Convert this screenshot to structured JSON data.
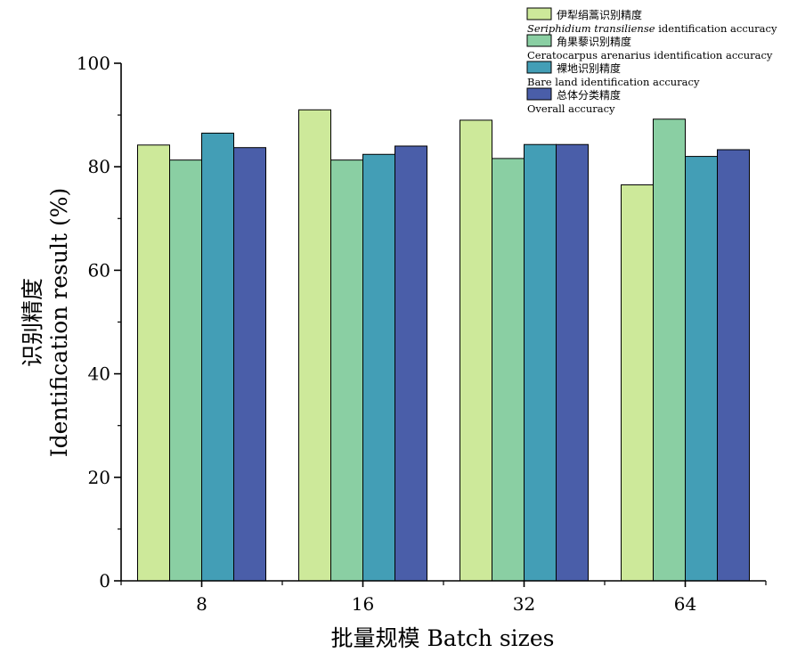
{
  "chart_data": {
    "type": "bar",
    "categories": [
      "8",
      "16",
      "32",
      "64"
    ],
    "series": [
      {
        "name_cn": "伊犁绢蒿识别精度",
        "name_italic": "Seriphidium transiliense",
        "name_en": " identification accuracy",
        "color": "#cde99a",
        "values": [
          84.2,
          91.0,
          89.0,
          76.5
        ]
      },
      {
        "name_cn": "角果藜识别精度",
        "name_italic": "",
        "name_en": "Ceratocarpus arenarius identification accuracy",
        "color": "#8acfa3",
        "values": [
          81.3,
          81.3,
          81.6,
          89.2
        ]
      },
      {
        "name_cn": "裸地识别精度",
        "name_italic": "",
        "name_en": "Bare land identification accuracy",
        "color": "#439eb6",
        "values": [
          86.5,
          82.4,
          84.3,
          82.0
        ]
      },
      {
        "name_cn": "总体分类精度",
        "name_italic": "",
        "name_en": "Overall accuracy",
        "color": "#4a5ea9",
        "values": [
          83.7,
          84.0,
          84.3,
          83.3
        ]
      }
    ],
    "ylim": [
      0,
      100
    ],
    "yticks": [
      "0",
      "20",
      "40",
      "60",
      "80",
      "100"
    ],
    "ylabel_cn": "识别精度",
    "ylabel_en": "Identification result (%)",
    "xlabel": "批量规模 Batch sizes",
    "legend_position": "top-right"
  }
}
